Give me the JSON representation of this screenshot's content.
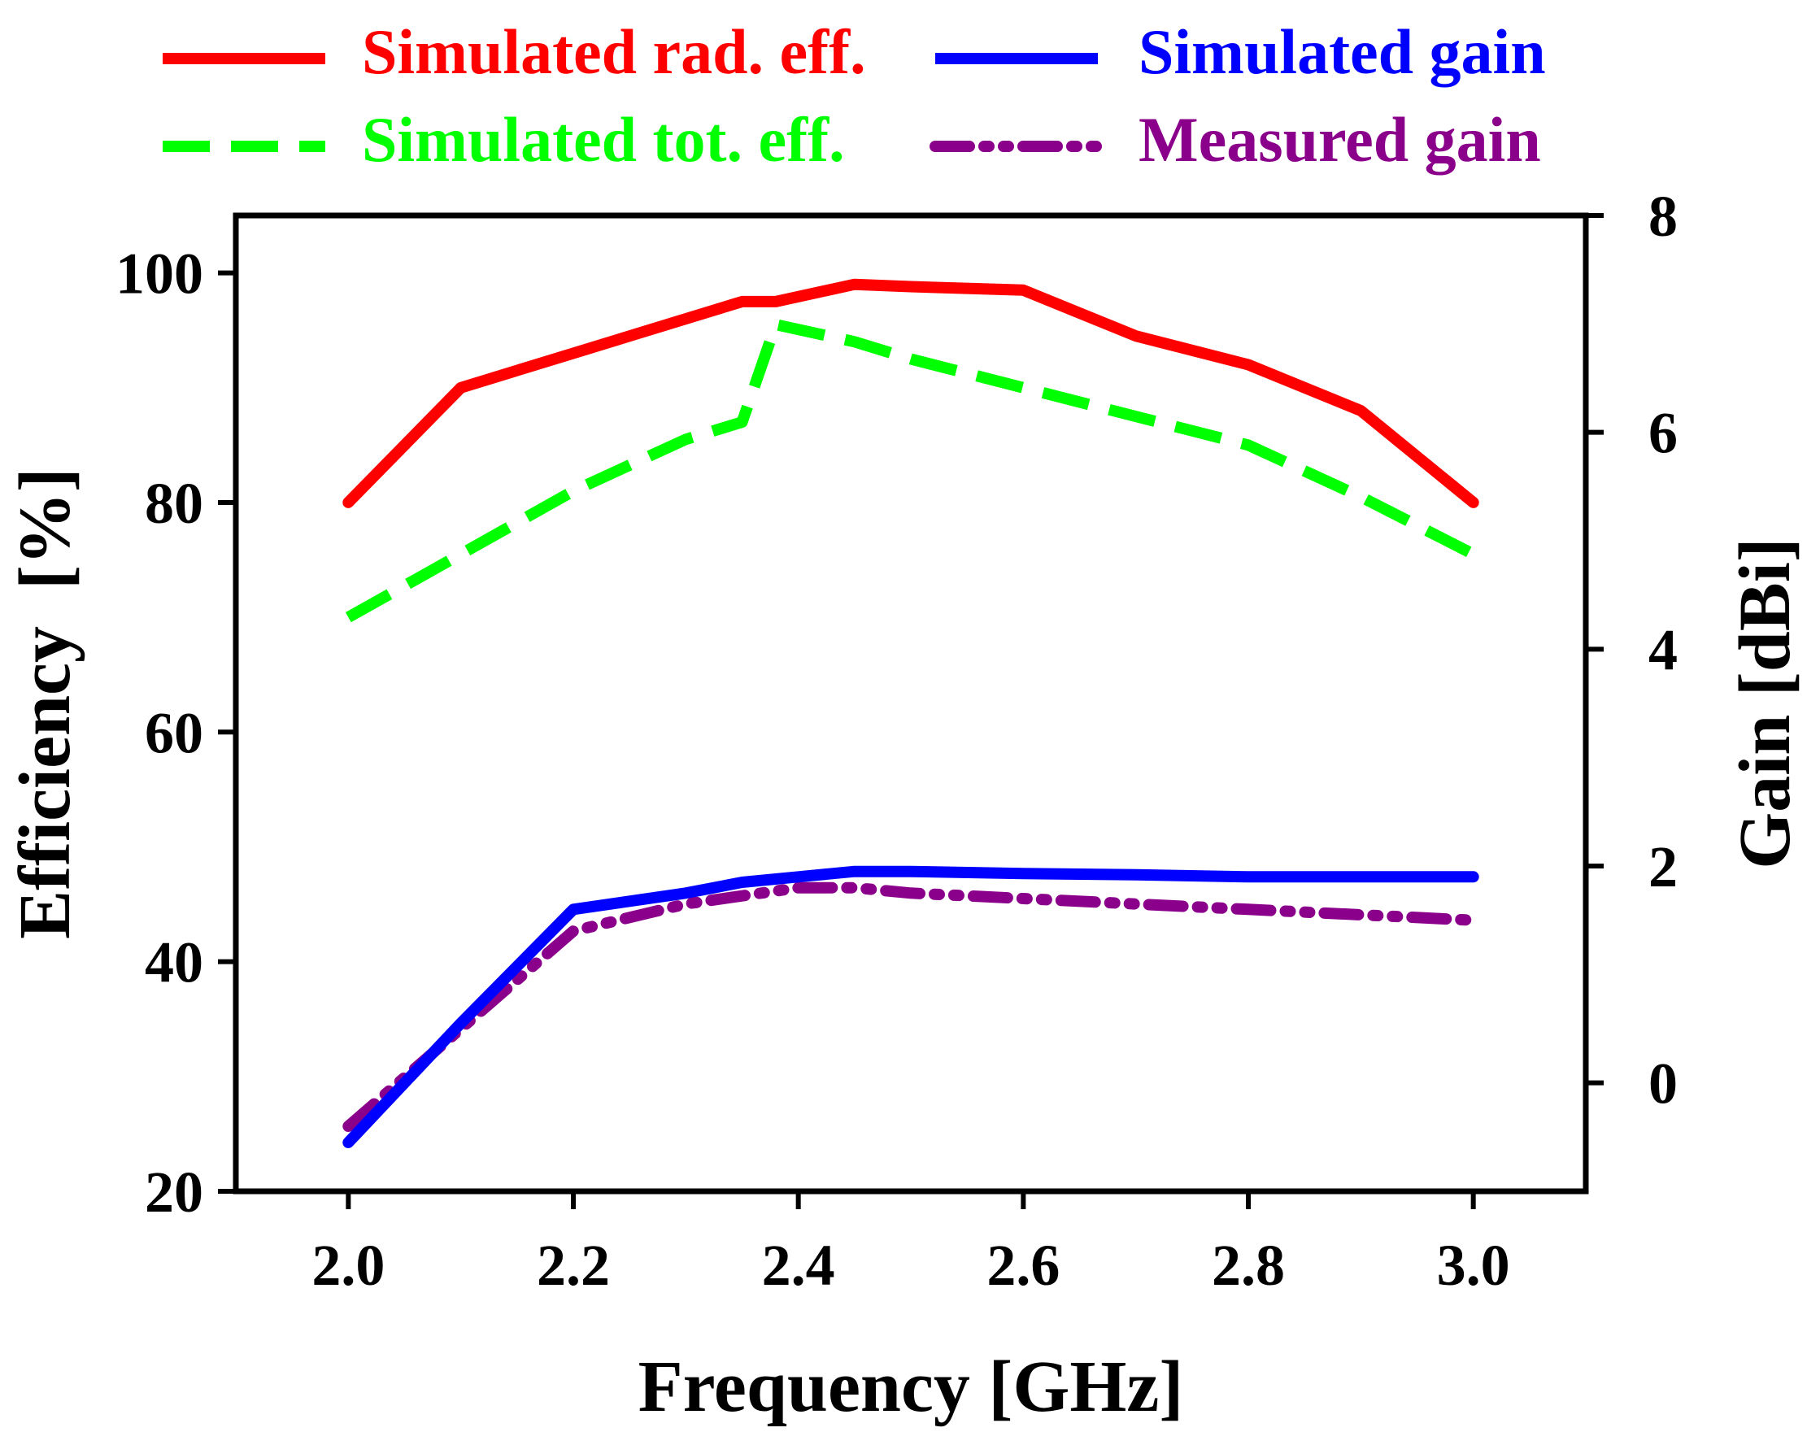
{
  "chart_data": {
    "type": "line",
    "x_axis": {
      "label": "Frequency [GHz]",
      "range": [
        1.9,
        3.1
      ],
      "ticks": [
        2.0,
        2.2,
        2.4,
        2.6,
        2.8,
        3.0
      ],
      "tick_labels": [
        "2.0",
        "2.2",
        "2.4",
        "2.6",
        "2.8",
        "3.0"
      ]
    },
    "y_left": {
      "label": "Efficiency  [%]",
      "range": [
        20,
        105
      ],
      "ticks": [
        20,
        40,
        60,
        80,
        100
      ],
      "tick_labels": [
        "20",
        "40",
        "60",
        "80",
        "100"
      ]
    },
    "y_right": {
      "label": "Gain [dBi]",
      "range": [
        -1,
        8
      ],
      "ticks": [
        0,
        2,
        4,
        6,
        8
      ],
      "tick_labels": [
        "0",
        "2",
        "4",
        "6",
        "8"
      ]
    },
    "legend_position": "top",
    "series": [
      {
        "name": "Simulated rad. eff.",
        "axis": "left",
        "color": "#ff0000",
        "style": "solid",
        "x": [
          2.0,
          2.1,
          2.2,
          2.3,
          2.35,
          2.38,
          2.45,
          2.5,
          2.6,
          2.7,
          2.8,
          2.9,
          3.0
        ],
        "y": [
          80,
          90,
          93,
          96,
          97.5,
          97.5,
          99,
          98.8,
          98.5,
          94.5,
          92,
          88,
          80
        ]
      },
      {
        "name": "Simulated gain",
        "axis": "right",
        "color": "#0000ff",
        "style": "solid",
        "x": [
          2.0,
          2.1,
          2.2,
          2.3,
          2.35,
          2.4,
          2.45,
          2.5,
          2.6,
          2.7,
          2.8,
          2.9,
          3.0
        ],
        "y": [
          -0.55,
          0.55,
          1.6,
          1.75,
          1.85,
          1.9,
          1.95,
          1.95,
          1.93,
          1.92,
          1.9,
          1.9,
          1.9
        ]
      },
      {
        "name": "Simulated tot. eff.",
        "axis": "left",
        "color": "#00ff00",
        "style": "dashed",
        "x": [
          2.0,
          2.1,
          2.2,
          2.3,
          2.35,
          2.38,
          2.45,
          2.5,
          2.6,
          2.7,
          2.8,
          2.9,
          3.0
        ],
        "y": [
          70,
          75.5,
          81,
          85.5,
          87,
          95.5,
          94,
          92.5,
          90,
          87.5,
          85,
          80.5,
          75.5
        ]
      },
      {
        "name": "Measured gain",
        "axis": "right",
        "color": "#8b008b",
        "style": "dash-dot-dot",
        "x": [
          2.0,
          2.1,
          2.2,
          2.3,
          2.4,
          2.45,
          2.5,
          2.6,
          2.7,
          2.8,
          2.9,
          3.0
        ],
        "y": [
          -0.4,
          0.5,
          1.4,
          1.65,
          1.8,
          1.8,
          1.75,
          1.7,
          1.65,
          1.6,
          1.55,
          1.5
        ]
      }
    ]
  }
}
